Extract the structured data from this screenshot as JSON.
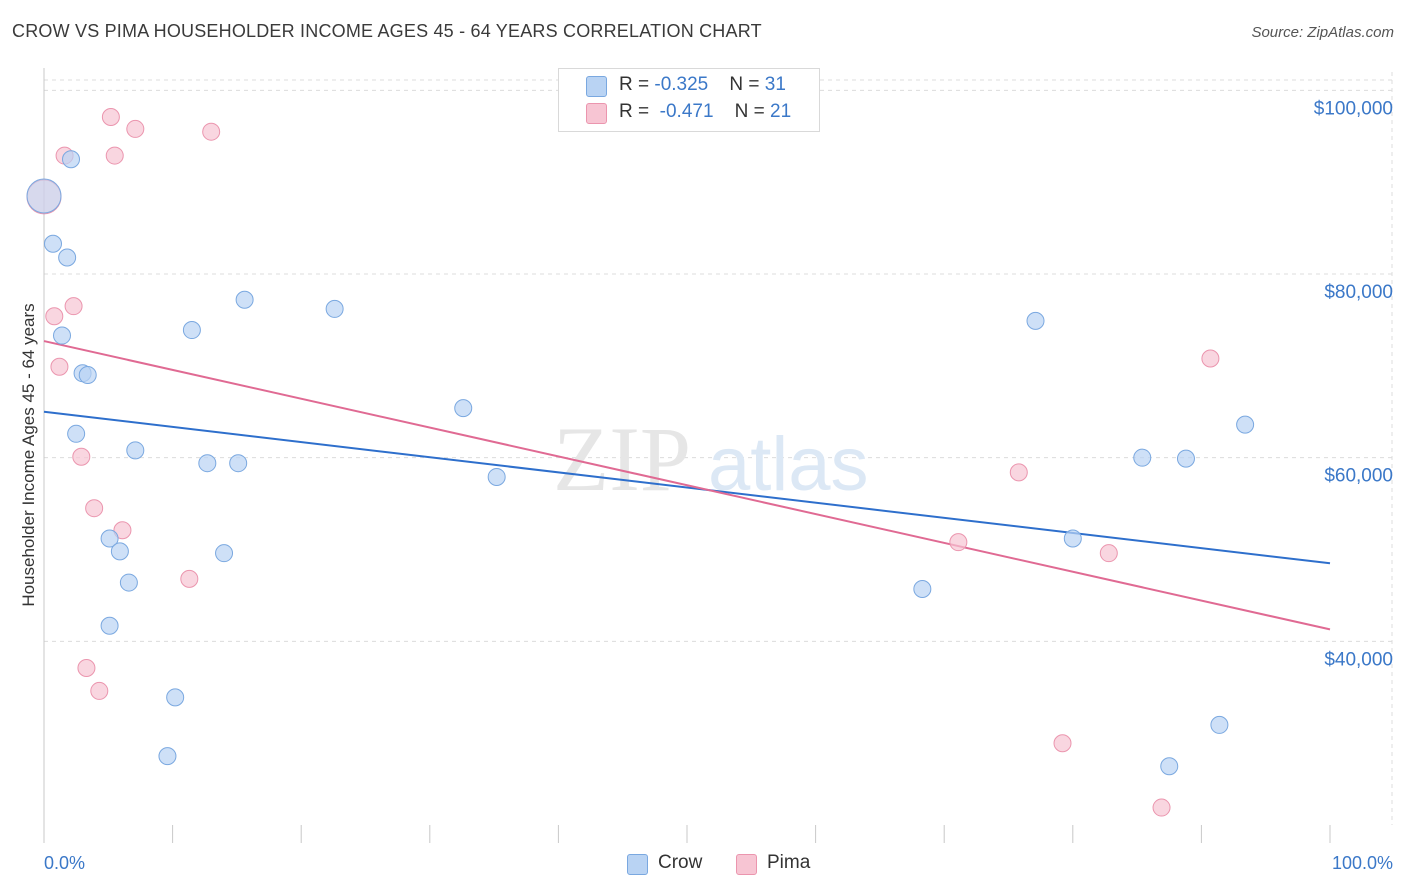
{
  "header": {
    "title": "CROW VS PIMA HOUSEHOLDER INCOME AGES 45 - 64 YEARS CORRELATION CHART",
    "source": "Source: ZipAtlas.com"
  },
  "watermark": {
    "zip": "ZIP",
    "atlas": "atlas"
  },
  "colors": {
    "crow_fill": "#b9d3f3",
    "crow_stroke": "#7aa8e0",
    "crow_line": "#2e6fcc",
    "pima_fill": "#f7c5d3",
    "pima_stroke": "#eb95ae",
    "pima_line": "#e06a93",
    "axis_text": "#3b78c8",
    "grid": "#dcdcdc"
  },
  "legend": {
    "rows": [
      {
        "r_label": "R = ",
        "r_value": "-0.325",
        "n_label": "N = ",
        "n_value": "31"
      },
      {
        "r_label": "R = ",
        "r_value": "-0.471",
        "n_label": "N = ",
        "n_value": "21"
      }
    ]
  },
  "bottom_legend": {
    "crow": "Crow",
    "pima": "Pima"
  },
  "chart_data": {
    "type": "scatter",
    "title": "CROW VS PIMA HOUSEHOLDER INCOME AGES 45 - 64 YEARS CORRELATION CHART",
    "xlabel": "",
    "ylabel": "Householder Income Ages 45 - 64 years",
    "xlim": [
      0,
      100
    ],
    "ylim": [
      20000,
      102000
    ],
    "x_tick_labels": [
      "0.0%",
      "100.0%"
    ],
    "y_ticks": [
      40000,
      60000,
      80000,
      100000
    ],
    "y_tick_labels": [
      "$40,000",
      "$60,000",
      "$80,000",
      "$100,000"
    ],
    "grid": true,
    "legend_position": "top-center",
    "series": [
      {
        "name": "Crow",
        "r": -0.325,
        "n": 31,
        "trend": {
          "x": [
            0,
            100
          ],
          "y": [
            65000,
            48500
          ]
        },
        "points": [
          {
            "x": 0.0,
            "y": 88500,
            "big": true
          },
          {
            "x": 0.7,
            "y": 83300
          },
          {
            "x": 1.8,
            "y": 81800
          },
          {
            "x": 2.1,
            "y": 92500
          },
          {
            "x": 1.4,
            "y": 73300
          },
          {
            "x": 2.5,
            "y": 62600
          },
          {
            "x": 3.0,
            "y": 69200
          },
          {
            "x": 3.4,
            "y": 69000
          },
          {
            "x": 5.1,
            "y": 51200
          },
          {
            "x": 5.9,
            "y": 49800
          },
          {
            "x": 6.6,
            "y": 46400
          },
          {
            "x": 5.1,
            "y": 41700
          },
          {
            "x": 7.1,
            "y": 60800
          },
          {
            "x": 11.5,
            "y": 73900
          },
          {
            "x": 12.7,
            "y": 59400
          },
          {
            "x": 15.1,
            "y": 59400
          },
          {
            "x": 14.0,
            "y": 49600
          },
          {
            "x": 15.6,
            "y": 77200
          },
          {
            "x": 22.6,
            "y": 76200
          },
          {
            "x": 10.2,
            "y": 33900
          },
          {
            "x": 9.6,
            "y": 27500
          },
          {
            "x": 32.6,
            "y": 65400
          },
          {
            "x": 35.2,
            "y": 57900
          },
          {
            "x": 68.3,
            "y": 45700
          },
          {
            "x": 77.1,
            "y": 74900
          },
          {
            "x": 80.0,
            "y": 51200
          },
          {
            "x": 85.4,
            "y": 60000
          },
          {
            "x": 88.8,
            "y": 59900
          },
          {
            "x": 93.4,
            "y": 63600
          },
          {
            "x": 91.4,
            "y": 30900
          },
          {
            "x": 87.5,
            "y": 26400
          }
        ]
      },
      {
        "name": "Pima",
        "r": -0.471,
        "n": 21,
        "trend": {
          "x": [
            0,
            100
          ],
          "y": [
            72700,
            41300
          ]
        },
        "points": [
          {
            "x": 0.0,
            "y": 88400,
            "big": true
          },
          {
            "x": 1.6,
            "y": 92900
          },
          {
            "x": 5.2,
            "y": 97100
          },
          {
            "x": 7.1,
            "y": 95800
          },
          {
            "x": 5.5,
            "y": 92900
          },
          {
            "x": 13.0,
            "y": 95500
          },
          {
            "x": 0.8,
            "y": 75400
          },
          {
            "x": 2.3,
            "y": 76500
          },
          {
            "x": 1.2,
            "y": 69900
          },
          {
            "x": 2.9,
            "y": 60100
          },
          {
            "x": 3.9,
            "y": 54500
          },
          {
            "x": 6.1,
            "y": 52100
          },
          {
            "x": 11.3,
            "y": 46800
          },
          {
            "x": 3.3,
            "y": 37100
          },
          {
            "x": 4.3,
            "y": 34600
          },
          {
            "x": 71.1,
            "y": 50800
          },
          {
            "x": 75.8,
            "y": 58400
          },
          {
            "x": 82.8,
            "y": 49600
          },
          {
            "x": 79.2,
            "y": 28900
          },
          {
            "x": 90.7,
            "y": 70800
          },
          {
            "x": 86.9,
            "y": 21900
          }
        ]
      }
    ]
  }
}
